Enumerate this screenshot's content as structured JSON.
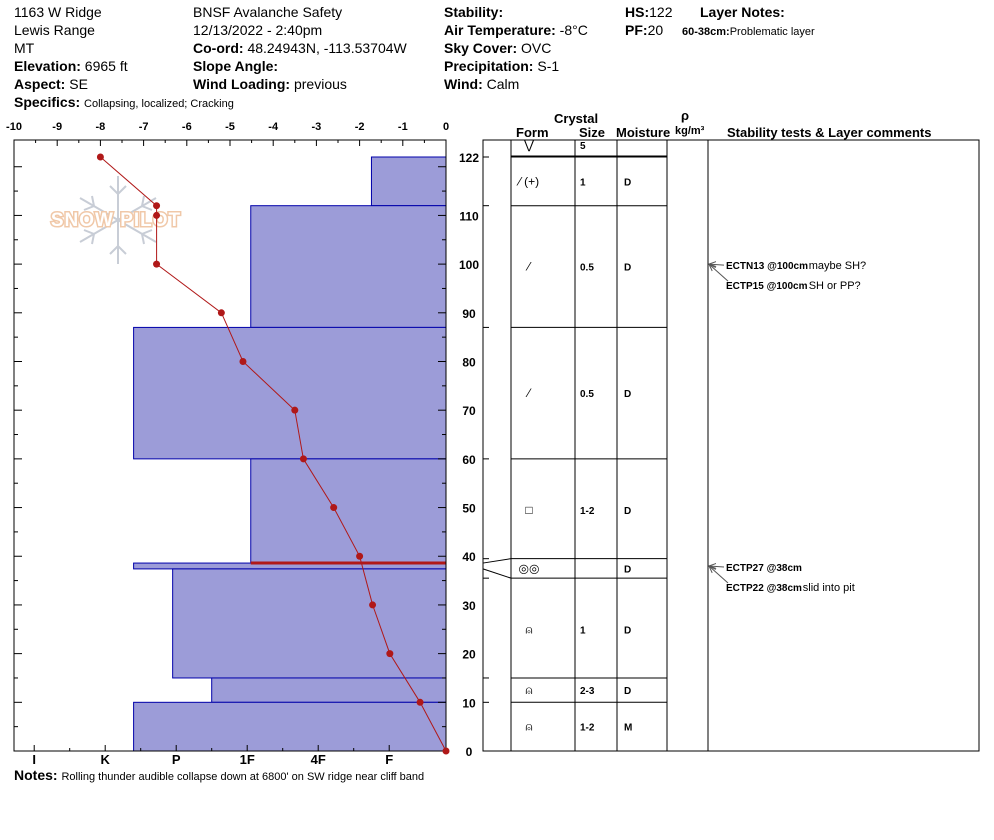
{
  "header": {
    "location": "1163 W Ridge",
    "range": "Lewis Range",
    "state": "MT",
    "elevation_label": "Elevation:",
    "elevation_value": "6965 ft",
    "aspect_label": "Aspect:",
    "aspect_value": "SE",
    "specifics_label": "Specifics:",
    "specifics_value": "Collapsing, localized; Cracking",
    "org": "BNSF Avalanche Safety",
    "datetime": "12/13/2022 - 2:40pm",
    "coord_label": "Co-ord:",
    "coord_value": "48.24943N, -113.53704W",
    "slope_label": "Slope Angle:",
    "slope_value": "",
    "wind_loading_label": "Wind Loading:",
    "wind_loading_value": "previous",
    "stability_label": "Stability:",
    "stability_value": "",
    "air_temp_label": "Air Temperature:",
    "air_temp_value": "-8°C",
    "sky_label": "Sky Cover:",
    "sky_value": "OVC",
    "precip_label": "Precipitation:",
    "precip_value": "S-1",
    "wind_label": "Wind:",
    "wind_value": "Calm",
    "hs_label": "HS:",
    "hs_value": "122",
    "pf_label": "PF:",
    "pf_value": "20",
    "layer_notes_label": "Layer Notes:",
    "layer_note_range": "60-38cm:",
    "layer_note_text": "Problematic layer"
  },
  "watermark": "SNOW PILOT",
  "notes_label": "Notes:",
  "notes_value": "Rolling thunder audible collapse down at 6800' on SW ridge near cliff band",
  "columns": {
    "crystal": "Crystal",
    "form": "Form",
    "size": "Size",
    "moisture": "Moisture",
    "rho": "ρ",
    "density_unit": "kg/m³",
    "stability": "Stability tests & Layer comments"
  },
  "chart_data": {
    "type": "snow-profile",
    "temp_axis": {
      "ticks": [
        "-10",
        "-9",
        "-8",
        "-7",
        "-6",
        "-5",
        "-4",
        "-3",
        "-2",
        "-1",
        "0"
      ],
      "range": [
        -10,
        0
      ]
    },
    "hardness_axis": {
      "ticks": [
        "I",
        "K",
        "P",
        "1F",
        "4F",
        "F"
      ]
    },
    "depth_axis": {
      "ticks": [
        "0",
        "10",
        "20",
        "30",
        "40",
        "50",
        "60",
        "70",
        "80",
        "90",
        "100",
        "110",
        "122"
      ],
      "range": [
        0,
        122
      ]
    },
    "temperature_profile": [
      {
        "depth": 122,
        "temp": -8.0
      },
      {
        "depth": 112,
        "temp": -6.7
      },
      {
        "depth": 110,
        "temp": -6.7
      },
      {
        "depth": 100,
        "temp": -6.7
      },
      {
        "depth": 90,
        "temp": -5.2
      },
      {
        "depth": 80,
        "temp": -4.7
      },
      {
        "depth": 70,
        "temp": -3.5
      },
      {
        "depth": 60,
        "temp": -3.3
      },
      {
        "depth": 50,
        "temp": -2.6
      },
      {
        "depth": 40,
        "temp": -2.0
      },
      {
        "depth": 30,
        "temp": -1.7
      },
      {
        "depth": 20,
        "temp": -1.3
      },
      {
        "depth": 10,
        "temp": -0.6
      },
      {
        "depth": 0,
        "temp": 0.0
      }
    ],
    "hardness_layers": [
      {
        "top": 122,
        "bottom": 112,
        "hardness": 1.05
      },
      {
        "top": 112,
        "bottom": 87,
        "hardness": 2.75
      },
      {
        "top": 87,
        "bottom": 60,
        "hardness": 4.4
      },
      {
        "top": 60,
        "bottom": 38.6,
        "hardness": 2.75
      },
      {
        "top": 38.6,
        "bottom": 37.4,
        "hardness": 4.4
      },
      {
        "top": 37.4,
        "bottom": 15,
        "hardness": 3.85
      },
      {
        "top": 15,
        "bottom": 10,
        "hardness": 3.3
      },
      {
        "top": 10,
        "bottom": 0,
        "hardness": 4.4
      }
    ],
    "critical_layer": {
      "depth": 38.6
    },
    "layers": [
      {
        "top": 122,
        "bottom": 122,
        "form": "⋁",
        "size": "5",
        "moisture": "",
        "label_depth": 124.5
      },
      {
        "top": 122,
        "bottom": 112,
        "form": "⁄ (+)",
        "size": "1",
        "moisture": "D",
        "label_depth": 117
      },
      {
        "top": 112,
        "bottom": 87,
        "form": "⁄",
        "size": "0.5",
        "moisture": "D",
        "label_depth": 99.5
      },
      {
        "top": 87,
        "bottom": 60,
        "form": "⁄",
        "size": "0.5",
        "moisture": "D",
        "label_depth": 73.5
      },
      {
        "top": 60,
        "bottom": 39.5,
        "form": "□",
        "size": "1-2",
        "moisture": "D",
        "label_depth": 49.5
      },
      {
        "top": 39.5,
        "bottom": 35.5,
        "form": "◎◎",
        "size": "",
        "moisture": "D",
        "label_depth": 37.5
      },
      {
        "top": 35.5,
        "bottom": 15,
        "form": "⍝",
        "size": "1",
        "moisture": "D",
        "label_depth": 25
      },
      {
        "top": 15,
        "bottom": 10,
        "form": "⍝",
        "size": "2-3",
        "moisture": "D",
        "label_depth": 12.5
      },
      {
        "top": 10,
        "bottom": 0,
        "form": "⍝",
        "size": "1-2",
        "moisture": "M",
        "label_depth": 5
      }
    ],
    "stability_tests": [
      {
        "depth": 100,
        "label": "ECTN13 @100cm",
        "comment": "maybe SH?"
      },
      {
        "depth": 100,
        "label": "ECTP15 @100cm",
        "comment": "SH or PP?"
      },
      {
        "depth": 38,
        "label": "ECTP27 @38cm",
        "comment": ""
      },
      {
        "depth": 38,
        "label": "ECTP22 @38cm",
        "comment": "slid into pit"
      }
    ],
    "colors": {
      "hardness_fill": "#9c9cd8",
      "hardness_line": "#0000aa",
      "temp_line": "#b01818",
      "critical": "#b01818"
    }
  }
}
